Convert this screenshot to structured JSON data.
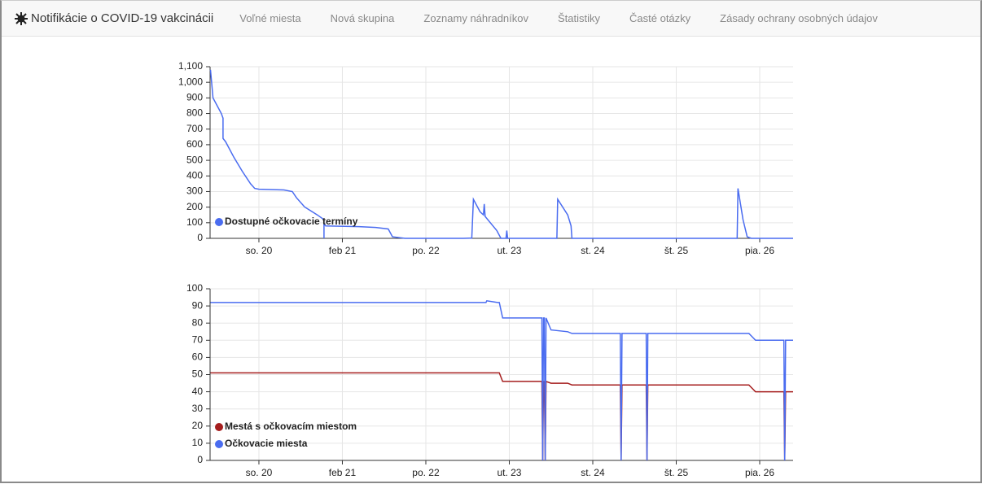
{
  "navbar": {
    "brand": "Notifikácie o COVID-19 vakcinácii",
    "links": [
      "Voľné miesta",
      "Nová skupina",
      "Zoznamy náhradníkov",
      "Štatistiky",
      "Časté otázky",
      "Zásady ochrany osobných údajov"
    ]
  },
  "chart_data": [
    {
      "type": "line",
      "x": [
        19.42,
        19.45,
        19.55,
        19.57,
        19.57,
        19.6,
        19.7,
        19.8,
        19.9,
        19.95,
        20.0,
        20.3,
        20.4,
        20.45,
        20.55,
        20.7,
        20.78,
        20.78,
        20.78,
        20.8,
        21.2,
        21.4,
        21.55,
        21.6,
        21.75,
        22.45,
        22.55,
        22.57,
        22.65,
        22.69,
        22.7,
        22.71,
        22.85,
        22.9,
        22.96,
        22.97,
        22.98,
        23.57,
        23.58,
        23.7,
        23.74,
        23.75,
        25.73,
        25.74,
        25.8,
        25.85,
        25.9,
        26.4
      ],
      "series": [
        {
          "name": "Dostupné očkovacie termíny",
          "color": "#4a6cf0",
          "values": [
            1080,
            900,
            800,
            770,
            640,
            620,
            520,
            430,
            350,
            320,
            315,
            310,
            300,
            260,
            200,
            150,
            120,
            0,
            90,
            80,
            75,
            70,
            60,
            10,
            0,
            0,
            2,
            250,
            170,
            150,
            220,
            140,
            50,
            0,
            0,
            50,
            0,
            0,
            250,
            150,
            80,
            0,
            0,
            320,
            120,
            10,
            0,
            0
          ]
        }
      ],
      "xlim": [
        19.415,
        26.4
      ],
      "xticks": [
        {
          "value": 20,
          "label": "so. 20"
        },
        {
          "value": 21,
          "label": "feb 21"
        },
        {
          "value": 22,
          "label": "po. 22"
        },
        {
          "value": 23,
          "label": "ut. 23"
        },
        {
          "value": 24,
          "label": "st. 24"
        },
        {
          "value": 25,
          "label": "št. 25"
        },
        {
          "value": 26,
          "label": "pia. 26"
        }
      ],
      "ylim": [
        0,
        1100
      ],
      "yticks": [
        0,
        100,
        200,
        300,
        400,
        500,
        600,
        700,
        800,
        900,
        {
          "value": 1000,
          "label": "1,000"
        },
        {
          "value": 1100,
          "label": "1,100"
        }
      ],
      "grid": true,
      "legend": "bottom-left"
    },
    {
      "type": "line",
      "x": [
        19.42,
        22.72,
        22.73,
        22.86,
        22.88,
        22.92,
        23.39,
        23.4,
        23.41,
        23.42,
        23.43,
        23.44,
        23.5,
        23.7,
        23.75,
        24.33,
        24.34,
        24.35,
        24.64,
        24.65,
        24.66,
        25.87,
        25.95,
        26.29,
        26.3,
        26.31,
        26.4
      ],
      "series": [
        {
          "name": "Mestá s očkovacím miestom",
          "color": "#a51d1d",
          "values": [
            51,
            51,
            51,
            51,
            51,
            46,
            46,
            0,
            46,
            46,
            0,
            46,
            45,
            45,
            44,
            44,
            0,
            44,
            44,
            0,
            44,
            44,
            40,
            40,
            0,
            40,
            40
          ]
        },
        {
          "name": "Očkovacie miesta",
          "color": "#4a6cf0",
          "values": [
            92,
            92,
            93,
            92,
            92,
            83,
            83,
            0,
            83,
            83,
            0,
            83,
            76,
            75,
            74,
            74,
            0,
            74,
            74,
            0,
            74,
            74,
            70,
            70,
            0,
            70,
            70
          ]
        }
      ],
      "xlim": [
        19.415,
        26.4
      ],
      "xticks": [
        {
          "value": 20,
          "label": "so. 20"
        },
        {
          "value": 21,
          "label": "feb 21"
        },
        {
          "value": 22,
          "label": "po. 22"
        },
        {
          "value": 23,
          "label": "ut. 23"
        },
        {
          "value": 24,
          "label": "st. 24"
        },
        {
          "value": 25,
          "label": "št. 25"
        },
        {
          "value": 26,
          "label": "pia. 26"
        }
      ],
      "ylim": [
        0,
        100
      ],
      "yticks": [
        0,
        10,
        20,
        30,
        40,
        50,
        60,
        70,
        80,
        90,
        100
      ],
      "grid": true,
      "legend": "bottom-left"
    }
  ]
}
